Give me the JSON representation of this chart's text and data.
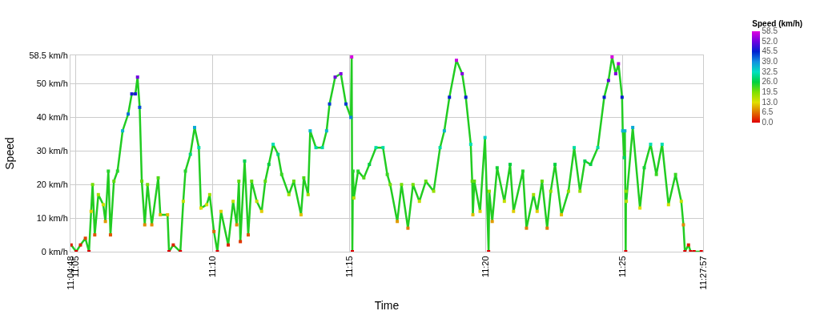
{
  "chart_data": {
    "type": "line",
    "xlabel": "Time",
    "ylabel": "Speed",
    "clabel": "Speed (km/h)",
    "x": [
      11.0804,
      11.0835,
      11.0861,
      11.0891,
      11.0913,
      11.0926,
      11.0935,
      11.0948,
      11.097,
      11.1,
      11.1013,
      11.1031,
      11.1044,
      11.1065,
      11.1087,
      11.1118,
      11.1152,
      11.1174,
      11.1196,
      11.1209,
      11.1222,
      11.1235,
      11.1253,
      11.127,
      11.1296,
      11.1335,
      11.1348,
      11.1392,
      11.1401,
      11.1427,
      11.147,
      11.1488,
      11.1501,
      11.1531,
      11.1557,
      11.1583,
      11.1596,
      11.1631,
      11.1649,
      11.1675,
      11.1696,
      11.1718,
      11.1762,
      11.1792,
      11.1814,
      11.1827,
      11.1836,
      11.1862,
      11.1884,
      11.1905,
      11.1936,
      11.1966,
      11.1988,
      11.201,
      11.2036,
      11.2066,
      11.2088,
      11.2132,
      11.2162,
      11.2206,
      11.2223,
      11.2249,
      11.2262,
      11.2297,
      11.2336,
      11.2362,
      11.238,
      11.2414,
      11.2449,
      11.248,
      11.251,
      11.2515,
      11.2519,
      11.2523,
      11.2528,
      11.2554,
      11.2589,
      11.2623,
      11.2663,
      11.2706,
      11.2732,
      11.275,
      11.2793,
      11.2819,
      11.2858,
      11.2889,
      11.2928,
      11.2967,
      11.3015,
      11.3054,
      11.308,
      11.3111,
      11.3154,
      11.3189,
      11.3211,
      11.3241,
      11.325,
      11.3254,
      11.3263,
      11.3298,
      11.3328,
      11.335,
      11.3354,
      11.3372,
      11.3402,
      11.3446,
      11.3481,
      11.3502,
      11.3559,
      11.3581,
      11.3624,
      11.3646,
      11.3676,
      11.3707,
      11.3729,
      11.3755,
      11.3794,
      11.3837,
      11.3872,
      11.3907,
      11.3937,
      11.3972,
      11.4016,
      11.4055,
      11.4081,
      11.4103,
      11.4125,
      11.4142,
      11.4164,
      11.4168,
      11.4177,
      11.4181,
      11.4186,
      11.4188,
      11.419,
      11.4229,
      11.4273,
      11.4299,
      11.4338,
      11.4373,
      11.4408,
      11.4447,
      11.449,
      11.4525,
      11.4538,
      11.4547,
      11.4569,
      11.4582,
      11.4603,
      11.4647
    ],
    "series": [
      {
        "color": "#22cc22",
        "values": [
          2,
          0,
          2,
          4,
          0,
          12,
          20,
          5,
          17,
          14,
          9,
          24,
          5,
          21,
          24,
          36,
          41,
          47,
          47,
          52,
          43,
          21,
          8,
          20,
          8,
          22,
          11,
          11,
          0,
          2,
          0,
          15,
          24,
          29,
          37,
          31,
          13,
          14,
          17,
          6,
          0,
          12,
          2,
          15,
          8,
          21,
          3,
          27,
          5,
          21,
          15,
          12,
          21,
          26,
          32,
          29,
          23,
          17,
          21,
          11,
          22,
          17,
          36,
          31,
          31,
          36,
          44,
          52,
          53,
          44,
          40,
          58,
          0,
          24,
          16,
          24,
          22,
          26,
          31,
          31,
          23,
          20,
          9,
          20,
          7,
          20,
          15,
          21,
          18,
          31,
          36,
          46,
          57,
          53,
          46,
          32,
          21,
          11,
          21,
          12,
          34,
          0,
          18,
          9,
          25,
          15,
          26,
          12,
          24,
          7,
          17,
          12,
          21,
          7,
          18,
          26,
          11,
          18,
          31,
          18,
          27,
          26,
          31,
          46,
          51,
          58,
          53,
          56,
          46,
          36,
          28,
          36,
          0,
          18,
          15,
          37,
          13,
          25,
          32,
          23,
          32,
          14,
          23,
          15,
          8,
          0,
          2,
          0,
          0,
          0
        ]
      }
    ],
    "clim": [
      0,
      58.5
    ],
    "cticks": [
      {
        "value": 0,
        "label": "0.0"
      },
      {
        "value": 6.5,
        "label": "6.5"
      },
      {
        "value": 13,
        "label": "13.0"
      },
      {
        "value": 19.5,
        "label": "19.5"
      },
      {
        "value": 26,
        "label": "26.0"
      },
      {
        "value": 32.5,
        "label": "32.5"
      },
      {
        "value": 39,
        "label": "39.0"
      },
      {
        "value": 45.5,
        "label": "45.5"
      },
      {
        "value": 52,
        "label": "52.0"
      },
      {
        "value": 58.5,
        "label": "58.5"
      }
    ],
    "xlim": [
      11.08,
      11.4658
    ],
    "xticks": [
      {
        "value": 11.08,
        "label": "11:04:48"
      },
      {
        "value": 11.0833,
        "label": "11:05"
      },
      {
        "value": 11.1667,
        "label": "11:10"
      },
      {
        "value": 11.25,
        "label": "11:15"
      },
      {
        "value": 11.3333,
        "label": "11:20"
      },
      {
        "value": 11.4167,
        "label": "11:25"
      },
      {
        "value": 11.4658,
        "label": "11:27:57"
      }
    ],
    "ylim": [
      0,
      58.5
    ],
    "yticks": [
      {
        "value": 0,
        "label": "0 km/h"
      },
      {
        "value": 10,
        "label": "10 km/h"
      },
      {
        "value": 20,
        "label": "20 km/h"
      },
      {
        "value": 30,
        "label": "30 km/h"
      },
      {
        "value": 40,
        "label": "40 km/h"
      },
      {
        "value": 50,
        "label": "50 km/h"
      },
      {
        "value": 58.5,
        "label": "58.5 km/h"
      }
    ],
    "grid": true,
    "marker": "square",
    "line_style": "solid"
  }
}
